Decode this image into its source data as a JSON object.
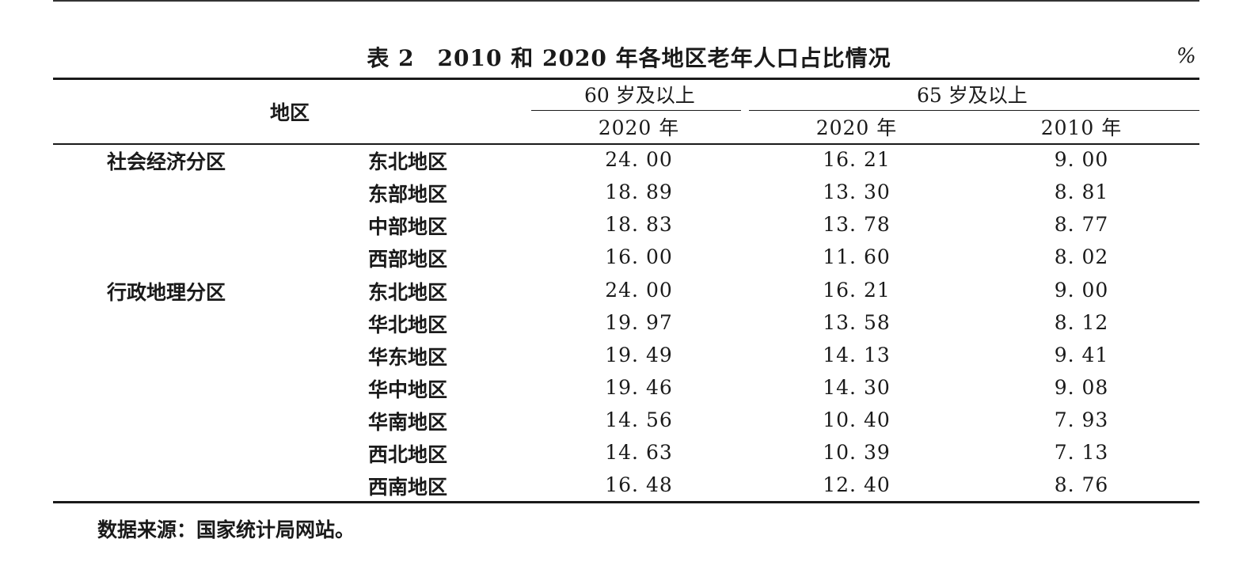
{
  "table": {
    "title": "表 2　2010 和 2020 年各地区老年人口占比情况",
    "unit": "%",
    "header": {
      "region": "地区",
      "group60": "60 岁及以上",
      "group65": "65 岁及以上",
      "col_60_2020": "2020 年",
      "col_65_2020": "2020 年",
      "col_65_2010": "2010 年"
    },
    "groups": [
      "社会经济分区",
      "行政地理分区"
    ],
    "rows": [
      {
        "region": "东北地区",
        "v60_2020": "24. 00",
        "v65_2020": "16. 21",
        "v65_2010": "9. 00"
      },
      {
        "region": "东部地区",
        "v60_2020": "18. 89",
        "v65_2020": "13. 30",
        "v65_2010": "8. 81"
      },
      {
        "region": "中部地区",
        "v60_2020": "18. 83",
        "v65_2020": "13. 78",
        "v65_2010": "8. 77"
      },
      {
        "region": "西部地区",
        "v60_2020": "16. 00",
        "v65_2020": "11. 60",
        "v65_2010": "8. 02"
      },
      {
        "region": "东北地区",
        "v60_2020": "24. 00",
        "v65_2020": "16. 21",
        "v65_2010": "9. 00"
      },
      {
        "region": "华北地区",
        "v60_2020": "19. 97",
        "v65_2020": "13. 58",
        "v65_2010": "8. 12"
      },
      {
        "region": "华东地区",
        "v60_2020": "19. 49",
        "v65_2020": "14. 13",
        "v65_2010": "9. 41"
      },
      {
        "region": "华中地区",
        "v60_2020": "19. 46",
        "v65_2020": "14. 30",
        "v65_2010": "9. 08"
      },
      {
        "region": "华南地区",
        "v60_2020": "14. 56",
        "v65_2020": "10. 40",
        "v65_2010": "7. 93"
      },
      {
        "region": "西北地区",
        "v60_2020": "14. 63",
        "v65_2020": "10. 39",
        "v65_2010": "7. 13"
      },
      {
        "region": "西南地区",
        "v60_2020": "16. 48",
        "v65_2020": "12. 40",
        "v65_2010": "8. 76"
      }
    ],
    "source": "数据来源：国家统计局网站。"
  }
}
